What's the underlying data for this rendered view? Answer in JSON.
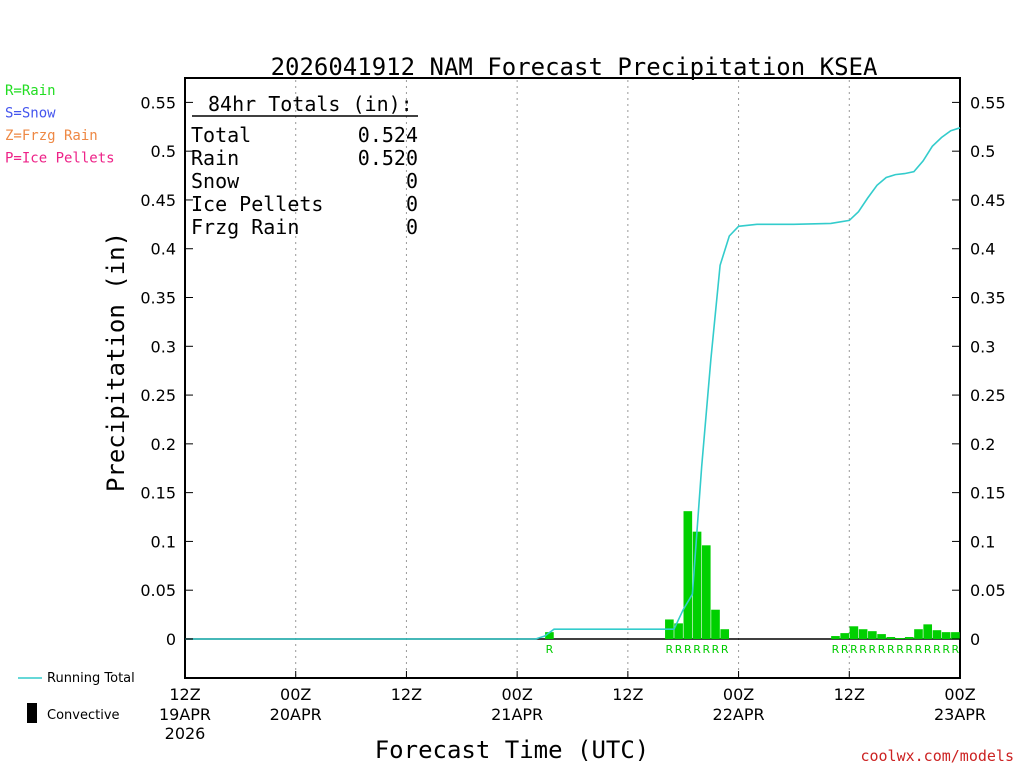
{
  "chart_data": {
    "type": "bar",
    "title": "2026041912 NAM Forecast Precipitation KSEA",
    "xlabel": "Forecast Time (UTC)",
    "ylabel": "Precipitation (in)",
    "ylim": [
      -0.04,
      0.575
    ],
    "xlim_hours": [
      0,
      84
    ],
    "yticks": [
      0,
      0.05,
      0.1,
      0.15,
      0.2,
      0.25,
      0.3,
      0.35,
      0.4,
      0.45,
      0.5,
      0.55
    ],
    "ytick_labels": [
      "0",
      "0.05",
      "0.1",
      "0.15",
      "0.2",
      "0.25",
      "0.3",
      "0.35",
      "0.4",
      "0.45",
      "0.5",
      "0.55"
    ],
    "xticks": [
      {
        "hour": 0,
        "label": "12Z",
        "date": "19APR",
        "year": "2026"
      },
      {
        "hour": 12,
        "label": "00Z",
        "date": "20APR",
        "year": ""
      },
      {
        "hour": 24,
        "label": "12Z",
        "date": "",
        "year": ""
      },
      {
        "hour": 36,
        "label": "00Z",
        "date": "21APR",
        "year": ""
      },
      {
        "hour": 48,
        "label": "12Z",
        "date": "",
        "year": ""
      },
      {
        "hour": 60,
        "label": "00Z",
        "date": "22APR",
        "year": ""
      },
      {
        "hour": 72,
        "label": "12Z",
        "date": "",
        "year": ""
      },
      {
        "hour": 84,
        "label": "00Z",
        "date": "23APR",
        "year": ""
      }
    ],
    "bar_hours": [
      40,
      53,
      54,
      55,
      56,
      57,
      58,
      59,
      71,
      72,
      73,
      74,
      75,
      76,
      77,
      78,
      79,
      80,
      81,
      82,
      83,
      84
    ],
    "bar_values": [
      0.007,
      0.02,
      0.016,
      0.131,
      0.11,
      0.096,
      0.03,
      0.01,
      0.003,
      0.006,
      0.013,
      0.01,
      0.008,
      0.005,
      0.002,
      0.001,
      0.002,
      0.01,
      0.015,
      0.009,
      0.007,
      0.007
    ],
    "bar_type": "R",
    "series": [
      {
        "name": "Running Total",
        "x": [
          0,
          38,
          39,
          40,
          53,
          54,
          55,
          56,
          57,
          58,
          59,
          60,
          62,
          66,
          70,
          72,
          73,
          74,
          75,
          76,
          77,
          78,
          79,
          80,
          81,
          82,
          83,
          84
        ],
        "y": [
          0,
          0,
          0.003,
          0.01,
          0.01,
          0.03,
          0.046,
          0.177,
          0.287,
          0.383,
          0.413,
          0.423,
          0.425,
          0.425,
          0.426,
          0.429,
          0.438,
          0.452,
          0.465,
          0.473,
          0.476,
          0.477,
          0.479,
          0.49,
          0.505,
          0.514,
          0.521,
          0.524
        ]
      }
    ]
  },
  "totals": {
    "heading": "84hr Totals (in):",
    "rows": [
      {
        "label": "Total",
        "value": "0.524"
      },
      {
        "label": "Rain",
        "value": "0.520"
      },
      {
        "label": "Snow",
        "value": "0"
      },
      {
        "label": "Ice Pellets",
        "value": "0"
      },
      {
        "label": "Frzg Rain",
        "value": "0"
      }
    ]
  },
  "precip_legend": [
    {
      "text": "R=Rain",
      "color": "#22dd22"
    },
    {
      "text": "S=Snow",
      "color": "#4455ee"
    },
    {
      "text": "Z=Frzg Rain",
      "color": "#ee8844"
    },
    {
      "text": "P=Ice Pellets",
      "color": "#ee2288"
    }
  ],
  "series_legend": {
    "running_total": "Running Total",
    "convective": "Convective"
  },
  "credit": "coolwx.com/models",
  "colors": {
    "bar": "#00d000",
    "line": "#33cccc",
    "credit": "#cc2222"
  }
}
